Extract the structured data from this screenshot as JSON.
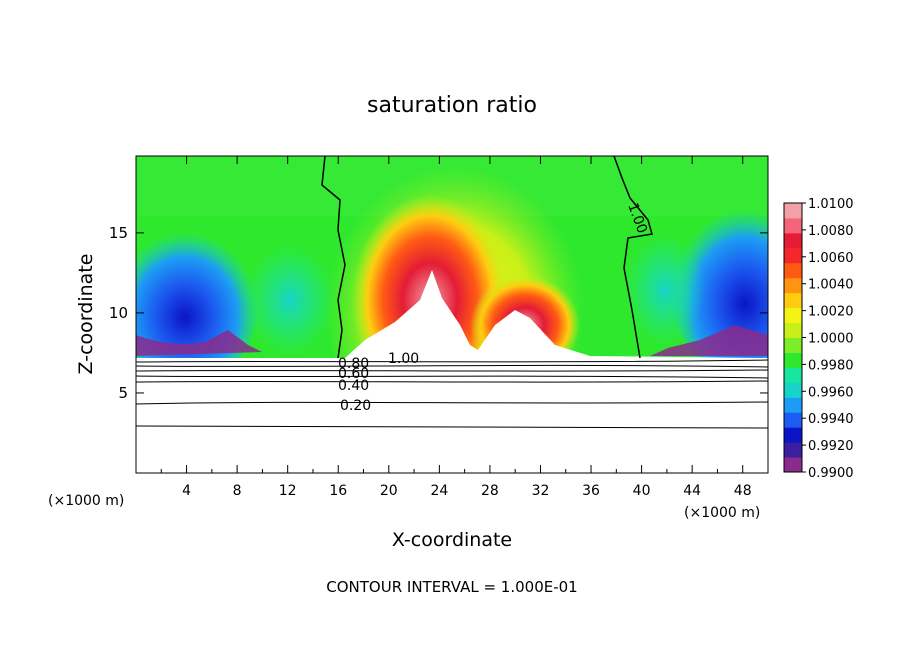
{
  "chart_data": {
    "type": "heatmap",
    "title": "saturation ratio",
    "xlabel": "X-coordinate",
    "ylabel": "Z-coordinate",
    "x_unit_left": "(×1000 m)",
    "x_unit_right": "(×1000 m)",
    "footer": "CONTOUR INTERVAL = 1.000E-01",
    "xlim": [
      0,
      50
    ],
    "ylim": [
      0,
      19.8
    ],
    "x_ticks": [
      "4",
      "8",
      "12",
      "16",
      "20",
      "24",
      "28",
      "32",
      "36",
      "40",
      "44",
      "48"
    ],
    "y_ticks": [
      "5",
      "10",
      "15"
    ],
    "colorbar": {
      "range": [
        0.99,
        1.01
      ],
      "tick_labels": [
        "1.0100",
        "1.0080",
        "1.0060",
        "1.0040",
        "1.0020",
        "1.0000",
        "0.9980",
        "0.9960",
        "0.9940",
        "0.9920",
        "0.9900"
      ],
      "colors": [
        "#8a2a8c",
        "#3a1fa0",
        "#0c14c8",
        "#1c5cf0",
        "#1c9cf4",
        "#18d4c8",
        "#18e6a0",
        "#2ee82e",
        "#7ced28",
        "#c8f018",
        "#f4f414",
        "#ffcc10",
        "#ff9410",
        "#ff5a14",
        "#f42828",
        "#e41c36",
        "#f4647a",
        "#f4a0a8"
      ]
    },
    "contour_labels": [
      "1.00",
      "1.00",
      "0.80",
      "0.60",
      "0.40",
      "0.20"
    ],
    "grid": false
  }
}
